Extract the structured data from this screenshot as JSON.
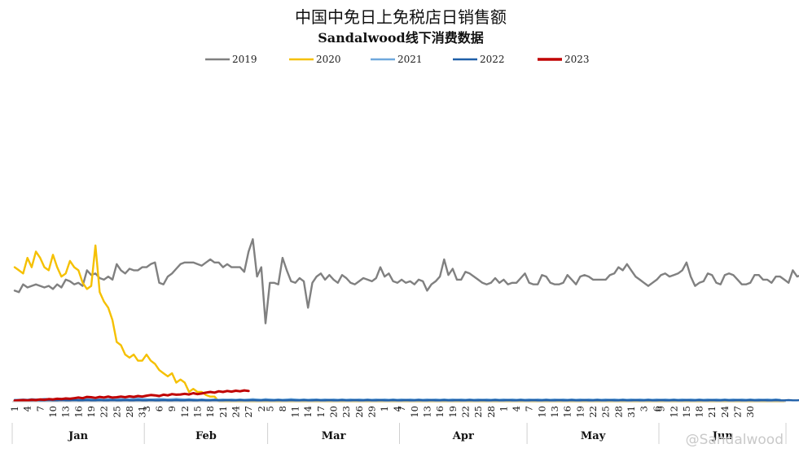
{
  "watermark": "@Sandalwood",
  "chart_data": {
    "type": "line",
    "title": "中国中免日上免税店日销售额",
    "subtitle": "Sandalwood线下消费数据",
    "legend_position": "top",
    "grid": false,
    "x_tick_labels": [
      "1",
      "4",
      "7",
      "10",
      "13",
      "16",
      "19",
      "22",
      "25",
      "28",
      "31",
      "3",
      "6",
      "9",
      "12",
      "15",
      "18",
      "21",
      "24",
      "27",
      "2",
      "5",
      "8",
      "11",
      "14",
      "17",
      "20",
      "23",
      "26",
      "29",
      "1",
      "4",
      "7",
      "10",
      "13",
      "16",
      "19",
      "22",
      "25",
      "28",
      "1",
      "4",
      "7",
      "10",
      "13",
      "16",
      "19",
      "22",
      "25",
      "28",
      "31",
      "3",
      "6",
      "9",
      "12",
      "15",
      "18",
      "21",
      "24",
      "27",
      "30"
    ],
    "months": [
      "Jan",
      "Feb",
      "Mar",
      "Apr",
      "May",
      "Jun"
    ],
    "month_day_counts": [
      31,
      29,
      31,
      30,
      31,
      30
    ],
    "ylim": [
      0,
      100
    ],
    "series": [
      {
        "name": "2019",
        "color": "#808080",
        "values": [
          35.5,
          35,
          37.5,
          36.5,
          37,
          37.5,
          37,
          36.5,
          37,
          36,
          37.5,
          36.5,
          39,
          38.5,
          37.5,
          38,
          37,
          42,
          40.5,
          41,
          39.5,
          39,
          40,
          39,
          44,
          42,
          41,
          42.5,
          42,
          42,
          43,
          43,
          44,
          44.5,
          38,
          37.5,
          40,
          41,
          42.5,
          44,
          44.5,
          44.5,
          44.5,
          44,
          43.5,
          44.5,
          45.5,
          44.5,
          44.5,
          43,
          44,
          43,
          43,
          43,
          41.5,
          48,
          52,
          40,
          43,
          25,
          38,
          38,
          37.5,
          46,
          42,
          38.5,
          38,
          39.5,
          38.5,
          30,
          38,
          40,
          41,
          39,
          40.5,
          39,
          38,
          40.5,
          39.5,
          38,
          37.5,
          38.5,
          39.5,
          39,
          38.5,
          39.5,
          43,
          40,
          41,
          38.5,
          38,
          39,
          38,
          38.5,
          37.5,
          39,
          38.5,
          35.5,
          37.5,
          38.5,
          40,
          45.5,
          40.5,
          42.5,
          39,
          39,
          41.5,
          41,
          40,
          39,
          38,
          37.5,
          38,
          39.5,
          38,
          39,
          37.5,
          38,
          38,
          39.5,
          41,
          38,
          37.5,
          37.5,
          40.5,
          40,
          38,
          37.5,
          37.5,
          38,
          40.5,
          39,
          37.5,
          40,
          40.5,
          40,
          39,
          39,
          39,
          39,
          40.5,
          41,
          43,
          42,
          44,
          42,
          40,
          39,
          38,
          37,
          38,
          39,
          40.5,
          41,
          40,
          40.5,
          41,
          42,
          44.5,
          40,
          37,
          38,
          38.5,
          41,
          40.5,
          38,
          37.5,
          40.5,
          41,
          40.5,
          39,
          37.5,
          37.5,
          38,
          40.5,
          40.5,
          39,
          39,
          38,
          40,
          40,
          39,
          38,
          42,
          40,
          40.5
        ]
      },
      {
        "name": "2020",
        "color": "#f5c000",
        "values": [
          43,
          42,
          41,
          46,
          43,
          48,
          46,
          43,
          42,
          47,
          43,
          40,
          41,
          45,
          43,
          42,
          38,
          36,
          37,
          50,
          35,
          32,
          30,
          26,
          19,
          18,
          15,
          14,
          15,
          13,
          13,
          15,
          13,
          12,
          10,
          9,
          8,
          9,
          6,
          7,
          6,
          3,
          4,
          3,
          3,
          2,
          1.5,
          1.5,
          0,
          0,
          0,
          0,
          0,
          0,
          0,
          0,
          0,
          0,
          0,
          0,
          0,
          0,
          0,
          0,
          0,
          0,
          0,
          0,
          0,
          0,
          0,
          0,
          0,
          0,
          0,
          0,
          0,
          0,
          0,
          0,
          0,
          0,
          0,
          0,
          0,
          0,
          0,
          0,
          0,
          0,
          0,
          0,
          0,
          0,
          0,
          0,
          0,
          0,
          0,
          0,
          0,
          0,
          0,
          0,
          0,
          0,
          0,
          0,
          0,
          0,
          0,
          0,
          0,
          0,
          0,
          0,
          0,
          0,
          0,
          0,
          0,
          0,
          0,
          0,
          0,
          0,
          0,
          0,
          0,
          0,
          0,
          0,
          0,
          0,
          0,
          0,
          0,
          0,
          0,
          0,
          0,
          0,
          0,
          0,
          0,
          0,
          0,
          0,
          0,
          0,
          0,
          0,
          0,
          0,
          0,
          0,
          0,
          0,
          0,
          0,
          0,
          0,
          0,
          0,
          0,
          0,
          0,
          0,
          0,
          0,
          0,
          0,
          0,
          0,
          0,
          0,
          0,
          0,
          0,
          0,
          0,
          0
        ]
      },
      {
        "name": "2021",
        "color": "#6fa8dc",
        "values": [
          0.5,
          0.5,
          0.6,
          0.5,
          0.7,
          0.6,
          0.6,
          0.8,
          0.7,
          0.6,
          0.7,
          0.8,
          0.7,
          0.8,
          0.9,
          0.8,
          0.7,
          0.9,
          0.8,
          0.7,
          0.6,
          0.5,
          0.7,
          0.8,
          0.7,
          0.8,
          0.6,
          0.7,
          0.8,
          0.9,
          0.8,
          0.7,
          0.6,
          0.7,
          0.8,
          0.7,
          0.6,
          0.7,
          0.8,
          0.7,
          0.6,
          0.7,
          0.6,
          0.5,
          0.6,
          0.5,
          0.5,
          0.6,
          0.5,
          0.6,
          0.5,
          0.6,
          0.5,
          0.6,
          0.5,
          0.6,
          0.7,
          0.6,
          0.5,
          0.7,
          0.6,
          0.5,
          0.6,
          0.5,
          0.6,
          0.7,
          0.6,
          0.5,
          0.6,
          0.5,
          0.6,
          0.6,
          0.5,
          0.6,
          0.5,
          0.6,
          0.5,
          0.6,
          0.5,
          0.6,
          0.5,
          0.6,
          0.5,
          0.6,
          0.5,
          0.6,
          0.5,
          0.6,
          0.5,
          0.6,
          0.5,
          0.6,
          0.5,
          0.6,
          0.5,
          0.6,
          0.5,
          0.6,
          0.5,
          0.6,
          0.5,
          0.6,
          0.5,
          0.6,
          0.5,
          0.6,
          0.5,
          0.6,
          0.5,
          0.6,
          0.5,
          0.6,
          0.5,
          0.6,
          0.5,
          0.6,
          0.5,
          0.6,
          0.5,
          0.6,
          0.5,
          0.6,
          0.5,
          0.6,
          0.5,
          0.6,
          0.5,
          0.6,
          0.5,
          0.6,
          0.5,
          0.6,
          0.5,
          0.6,
          0.5,
          0.6,
          0.5,
          0.6,
          0.5,
          0.6,
          0.5,
          0.6,
          0.5,
          0.6,
          0.5,
          0.6,
          0.5,
          0.6,
          0.5,
          0.6,
          0.5,
          0.6,
          0.5,
          0.6,
          0.5,
          0.6,
          0.5,
          0.6,
          0.5,
          0.6,
          0.5,
          0.6,
          0.5,
          0.6,
          0.5,
          0.6,
          0.5,
          0.6,
          0.5,
          0.6,
          0.5,
          0.6,
          0.5,
          0.6,
          0.5,
          0.6,
          0.5,
          0.6,
          0.5,
          0.6,
          0.5
        ]
      },
      {
        "name": "2022",
        "color": "#1f5fa8",
        "values": [
          0.3,
          0.3,
          0.4,
          0.3,
          0.3,
          0.4,
          0.3,
          0.3,
          0.4,
          0.3,
          0.3,
          0.4,
          0.3,
          0.3,
          0.4,
          0.3,
          0.3,
          0.4,
          0.3,
          0.3,
          0.4,
          0.3,
          0.3,
          0.4,
          0.3,
          0.3,
          0.4,
          0.3,
          0.3,
          0.4,
          0.3,
          0.3,
          0.4,
          0.3,
          0.3,
          0.4,
          0.3,
          0.3,
          0.4,
          0.3,
          0.3,
          0.4,
          0.3,
          0.3,
          0.4,
          0.3,
          0.3,
          0.4,
          0.3,
          0.3,
          0.4,
          0.3,
          0.3,
          0.4,
          0.3,
          0.3,
          0.4,
          0.3,
          0.3,
          0.4,
          0.3,
          0.3,
          0.4,
          0.3,
          0.3,
          0.4,
          0.3,
          0.3,
          0.4,
          0.3,
          0.3,
          0.4,
          0.3,
          0.3,
          0.4,
          0.3,
          0.3,
          0.4,
          0.3,
          0.3,
          0.4,
          0.3,
          0.3,
          0.4,
          0.3,
          0.3,
          0.4,
          0.3,
          0.3,
          0.4,
          0.3,
          0.3,
          0.4,
          0.3,
          0.3,
          0.4,
          0.3,
          0.3,
          0.4,
          0.3,
          0.3,
          0.4,
          0.3,
          0.3,
          0.4,
          0.3,
          0.3,
          0.4,
          0.3,
          0.3,
          0.4,
          0.3,
          0.3,
          0.4,
          0.3,
          0.3,
          0.4,
          0.3,
          0.3,
          0.4,
          0.3,
          0.3,
          0.4,
          0.3,
          0.3,
          0.4,
          0.3,
          0.3,
          0.4,
          0.3,
          0.3,
          0.4,
          0.3,
          0.3,
          0.4,
          0.3,
          0.3,
          0.4,
          0.3,
          0.3,
          0.4,
          0.3,
          0.3,
          0.4,
          0.3,
          0.3,
          0.4,
          0.3,
          0.3,
          0.4,
          0.3,
          0.3,
          0.4,
          0.3,
          0.3,
          0.4,
          0.3,
          0.3,
          0.4,
          0.3,
          0.3,
          0.4,
          0.3,
          0.3,
          0.4,
          0.3,
          0.3,
          0.4,
          0.3,
          0.3,
          0.4,
          0.3,
          0.3,
          0.4,
          0.3,
          0.3,
          0.4,
          0.3,
          0.3,
          0.4,
          0.3,
          0.3,
          0.4,
          0.3,
          0.3,
          0.4
        ]
      },
      {
        "name": "2023",
        "color": "#c00000",
        "values": [
          0.2,
          0.3,
          0.4,
          0.3,
          0.5,
          0.4,
          0.6,
          0.5,
          0.7,
          0.6,
          0.8,
          0.7,
          0.9,
          0.8,
          1.0,
          1.2,
          1.0,
          1.4,
          1.3,
          1.1,
          1.4,
          1.2,
          1.5,
          1.2,
          1.3,
          1.5,
          1.3,
          1.6,
          1.4,
          1.7,
          1.5,
          1.8,
          2.0,
          1.9,
          1.7,
          2.1,
          1.9,
          2.3,
          2.1,
          2.2,
          2.4,
          2.2,
          2.6,
          2.3,
          2.5,
          2.8,
          3.0,
          2.8,
          3.2,
          3.0,
          3.3,
          3.1,
          3.4,
          3.2,
          3.5,
          3.3
        ]
      }
    ]
  }
}
